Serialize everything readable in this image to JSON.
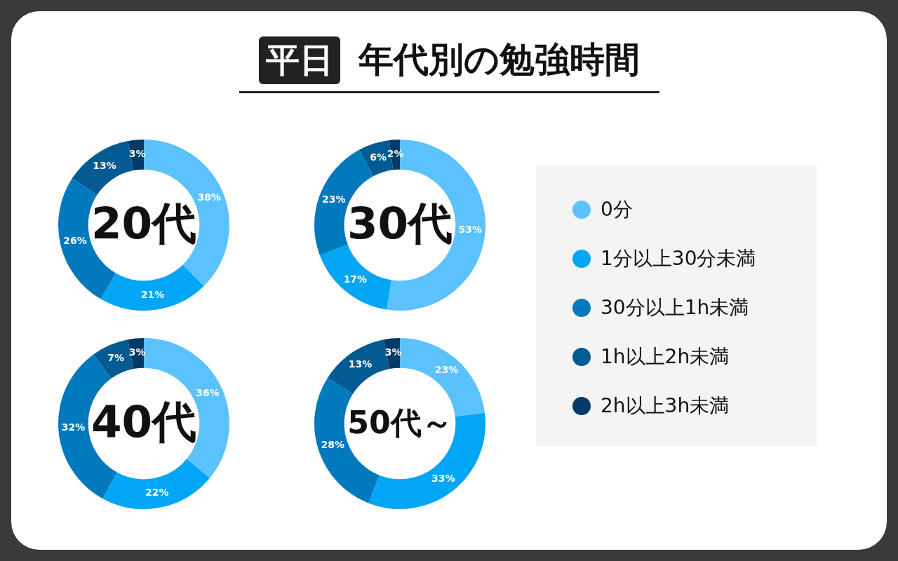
{
  "chart_data": [
    {
      "type": "other",
      "subtitle": "平日",
      "title": "年代別の勉強時間"
    },
    {
      "type": "donut",
      "title": "20代",
      "categories": [
        "0分",
        "1分以上30分未満",
        "30分以上1h未満",
        "1h以上2h未満",
        "2h以上3h未満"
      ],
      "values": [
        38,
        21,
        26,
        13,
        3
      ],
      "value_labels": [
        "38%",
        "21%",
        "26%",
        "13%",
        "3%"
      ],
      "colors": [
        "#5bc2fd",
        "#03a5f5",
        "#0279bd",
        "#045a92",
        "#033a68"
      ],
      "legend": "right"
    },
    {
      "type": "donut",
      "title": "30代",
      "values": [
        53,
        17,
        23,
        6,
        2
      ],
      "value_labels": [
        "53%",
        "17%",
        "23%",
        "6%",
        "2%"
      ],
      "colors": [
        "#5bc2fd",
        "#03a5f5",
        "#0279bd",
        "#045a92",
        "#033a68"
      ]
    },
    {
      "type": "donut",
      "title": "40代",
      "values": [
        36,
        22,
        32,
        7,
        3
      ],
      "value_labels": [
        "36%",
        "22%",
        "32%",
        "7%",
        "3%"
      ],
      "colors": [
        "#5bc2fd",
        "#03a5f5",
        "#0279bd",
        "#045a92",
        "#033a68"
      ]
    },
    {
      "type": "donut",
      "title": "50代～",
      "values": [
        23,
        33,
        28,
        13,
        3
      ],
      "value_labels": [
        "23%",
        "33%",
        "28%",
        "13%",
        "3%"
      ],
      "colors": [
        "#5bc2fd",
        "#03a5f5",
        "#0279bd",
        "#045a92",
        "#033a68"
      ]
    }
  ]
}
